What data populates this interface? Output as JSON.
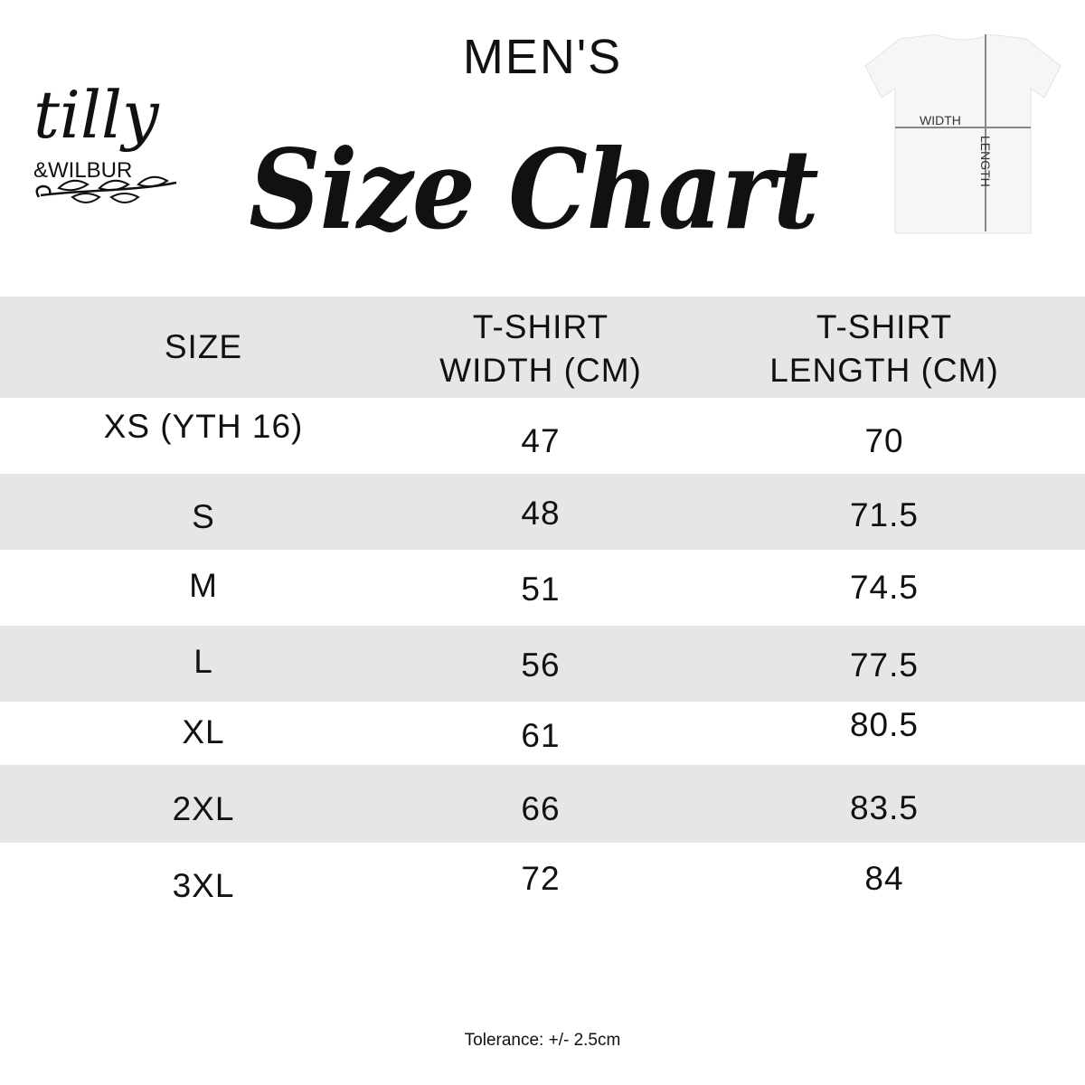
{
  "brand": {
    "logo_text": "tilly & WILBUR"
  },
  "header": {
    "subtitle": "MEN'S",
    "title": "Size Chart"
  },
  "diagram": {
    "width_label": "WIDTH",
    "length_label": "LENGTH"
  },
  "table": {
    "columns": [
      {
        "line1": "SIZE",
        "line2": ""
      },
      {
        "line1": "T-SHIRT",
        "line2": "WIDTH (CM)"
      },
      {
        "line1": "T-SHIRT",
        "line2": "LENGTH (CM)"
      }
    ],
    "rows": [
      [
        "XS (YTH 16)",
        "47",
        "70"
      ],
      [
        "S",
        "48",
        "71.5"
      ],
      [
        "M",
        "51",
        "74.5"
      ],
      [
        "L",
        "56",
        "77.5"
      ],
      [
        "XL",
        "61",
        "80.5"
      ],
      [
        "2XL",
        "66",
        "83.5"
      ],
      [
        "3XL",
        "72",
        "84"
      ]
    ]
  },
  "footer": {
    "tolerance": "Tolerance: +/- 2.5cm"
  },
  "colors": {
    "band": "#e6e6e6",
    "text": "#111111"
  }
}
